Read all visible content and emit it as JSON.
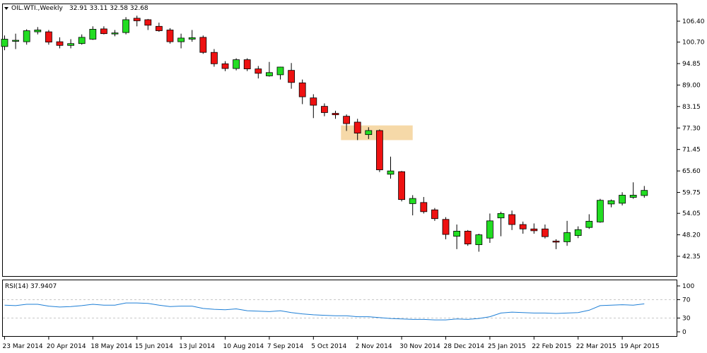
{
  "header": {
    "symbol": "OIL.WTI.,Weekly",
    "ohlc": "32.91 33.11 32.58 32.68"
  },
  "rsi_panel": {
    "label": "RSI(14) 37.9407",
    "levels": [
      0,
      30,
      70,
      100
    ]
  },
  "colors": {
    "bull": "#22dd22",
    "bear": "#ee1111",
    "rsi_line": "#1e7fd6",
    "highlight": "#f6d9a8"
  },
  "highlight_zone": {
    "x_from": 30.5,
    "x_to": 37,
    "y_from": 74.0,
    "y_to": 78.0
  },
  "chart_data": [
    {
      "type": "candlestick",
      "ylim": [
        42.35,
        106.4
      ],
      "y_ticks": [
        "106.40",
        "100.70",
        "94.85",
        "89.00",
        "83.15",
        "77.30",
        "71.45",
        "65.60",
        "59.75",
        "54.05",
        "48.20",
        "42.35"
      ],
      "x_ticks": [
        {
          "i": 0,
          "label": "23 Mar 2014"
        },
        {
          "i": 4,
          "label": "20 Apr 2014"
        },
        {
          "i": 8,
          "label": "18 May 2014"
        },
        {
          "i": 12,
          "label": "15 Jun 2014"
        },
        {
          "i": 16,
          "label": "13 Jul 2014"
        },
        {
          "i": 20,
          "label": "10 Aug 2014"
        },
        {
          "i": 24,
          "label": "7 Sep 2014"
        },
        {
          "i": 28,
          "label": "5 Oct 2014"
        },
        {
          "i": 32,
          "label": "2 Nov 2014"
        },
        {
          "i": 36,
          "label": "30 Nov 2014"
        },
        {
          "i": 40,
          "label": "28 Dec 2014"
        },
        {
          "i": 44,
          "label": "25 Jan 2015"
        },
        {
          "i": 48,
          "label": "22 Feb 2015"
        },
        {
          "i": 52,
          "label": "22 Mar 2015"
        },
        {
          "i": 56,
          "label": "19 Apr 2015"
        }
      ],
      "candles": [
        {
          "o": 99.5,
          "h": 102.5,
          "l": 98.5,
          "c": 101.5
        },
        {
          "o": 101.0,
          "h": 103.0,
          "l": 98.8,
          "c": 101.2
        },
        {
          "o": 100.8,
          "h": 104.2,
          "l": 100.0,
          "c": 103.8
        },
        {
          "o": 103.5,
          "h": 104.8,
          "l": 102.8,
          "c": 104.0
        },
        {
          "o": 103.5,
          "h": 104.0,
          "l": 100.0,
          "c": 100.7
        },
        {
          "o": 100.8,
          "h": 102.0,
          "l": 99.0,
          "c": 99.8
        },
        {
          "o": 99.8,
          "h": 101.5,
          "l": 99.0,
          "c": 100.3
        },
        {
          "o": 100.3,
          "h": 102.8,
          "l": 100.0,
          "c": 102.0
        },
        {
          "o": 101.5,
          "h": 105.0,
          "l": 101.3,
          "c": 104.2
        },
        {
          "o": 104.3,
          "h": 105.0,
          "l": 102.8,
          "c": 103.0
        },
        {
          "o": 103.0,
          "h": 104.0,
          "l": 102.3,
          "c": 103.2
        },
        {
          "o": 103.3,
          "h": 107.5,
          "l": 102.8,
          "c": 106.8
        },
        {
          "o": 107.2,
          "h": 107.9,
          "l": 105.0,
          "c": 106.5
        },
        {
          "o": 106.8,
          "h": 107.0,
          "l": 104.0,
          "c": 105.3
        },
        {
          "o": 105.0,
          "h": 106.0,
          "l": 103.5,
          "c": 103.8
        },
        {
          "o": 104.0,
          "h": 104.5,
          "l": 100.3,
          "c": 100.8
        },
        {
          "o": 100.8,
          "h": 103.0,
          "l": 99.0,
          "c": 101.8
        },
        {
          "o": 101.5,
          "h": 104.0,
          "l": 100.8,
          "c": 101.9
        },
        {
          "o": 102.0,
          "h": 102.5,
          "l": 97.5,
          "c": 97.9
        },
        {
          "o": 97.9,
          "h": 98.8,
          "l": 94.0,
          "c": 94.8
        },
        {
          "o": 94.8,
          "h": 95.5,
          "l": 92.8,
          "c": 93.5
        },
        {
          "o": 93.5,
          "h": 96.3,
          "l": 93.0,
          "c": 95.9
        },
        {
          "o": 95.9,
          "h": 96.3,
          "l": 92.8,
          "c": 93.4
        },
        {
          "o": 93.4,
          "h": 94.2,
          "l": 90.8,
          "c": 92.2
        },
        {
          "o": 91.5,
          "h": 95.3,
          "l": 91.3,
          "c": 92.4
        },
        {
          "o": 91.8,
          "h": 94.0,
          "l": 90.5,
          "c": 93.9
        },
        {
          "o": 93.0,
          "h": 95.0,
          "l": 88.0,
          "c": 89.7
        },
        {
          "o": 89.6,
          "h": 90.5,
          "l": 83.8,
          "c": 85.8
        },
        {
          "o": 85.5,
          "h": 86.5,
          "l": 80.0,
          "c": 83.5
        },
        {
          "o": 83.2,
          "h": 84.0,
          "l": 80.5,
          "c": 81.5
        },
        {
          "o": 81.3,
          "h": 82.0,
          "l": 79.8,
          "c": 80.9
        },
        {
          "o": 80.5,
          "h": 81.0,
          "l": 76.5,
          "c": 78.5
        },
        {
          "o": 78.9,
          "h": 79.8,
          "l": 74.0,
          "c": 75.9
        },
        {
          "o": 75.5,
          "h": 77.5,
          "l": 74.3,
          "c": 76.6
        },
        {
          "o": 76.6,
          "h": 76.9,
          "l": 65.3,
          "c": 65.9
        },
        {
          "o": 64.7,
          "h": 69.5,
          "l": 63.5,
          "c": 65.6
        },
        {
          "o": 65.4,
          "h": 65.6,
          "l": 57.3,
          "c": 57.8
        },
        {
          "o": 56.7,
          "h": 59.0,
          "l": 53.5,
          "c": 58.1
        },
        {
          "o": 57.0,
          "h": 58.5,
          "l": 54.0,
          "c": 54.5
        },
        {
          "o": 55.0,
          "h": 55.5,
          "l": 52.0,
          "c": 52.6
        },
        {
          "o": 52.4,
          "h": 53.0,
          "l": 47.0,
          "c": 48.3
        },
        {
          "o": 47.8,
          "h": 51.0,
          "l": 44.3,
          "c": 49.2
        },
        {
          "o": 49.2,
          "h": 49.5,
          "l": 45.2,
          "c": 45.7
        },
        {
          "o": 45.5,
          "h": 48.5,
          "l": 43.6,
          "c": 48.2
        },
        {
          "o": 47.3,
          "h": 54.0,
          "l": 46.0,
          "c": 52.0
        },
        {
          "o": 52.8,
          "h": 54.5,
          "l": 47.8,
          "c": 54.0
        },
        {
          "o": 53.7,
          "h": 54.8,
          "l": 49.5,
          "c": 51.0
        },
        {
          "o": 51.0,
          "h": 51.8,
          "l": 48.5,
          "c": 49.8
        },
        {
          "o": 49.8,
          "h": 51.3,
          "l": 48.5,
          "c": 49.3
        },
        {
          "o": 49.8,
          "h": 51.0,
          "l": 47.2,
          "c": 47.7
        },
        {
          "o": 46.5,
          "h": 47.0,
          "l": 44.3,
          "c": 46.2
        },
        {
          "o": 46.3,
          "h": 52.0,
          "l": 45.2,
          "c": 48.8
        },
        {
          "o": 48.0,
          "h": 50.5,
          "l": 47.3,
          "c": 49.6
        },
        {
          "o": 50.2,
          "h": 53.8,
          "l": 49.8,
          "c": 51.9
        },
        {
          "o": 51.7,
          "h": 58.0,
          "l": 51.5,
          "c": 57.6
        },
        {
          "o": 56.6,
          "h": 57.8,
          "l": 55.7,
          "c": 57.5
        },
        {
          "o": 56.8,
          "h": 59.8,
          "l": 56.2,
          "c": 59.0
        },
        {
          "o": 58.4,
          "h": 62.5,
          "l": 58.0,
          "c": 59.0
        },
        {
          "o": 58.9,
          "h": 61.5,
          "l": 58.3,
          "c": 60.3
        }
      ]
    },
    {
      "type": "line",
      "name": "RSI(14)",
      "ylim": [
        0,
        100
      ],
      "levels": [
        30,
        70
      ],
      "y_ticks": [
        "100",
        "70",
        "30",
        "0"
      ],
      "values": [
        58,
        57,
        60,
        60,
        56,
        54,
        55,
        57,
        60,
        58,
        58,
        63,
        63,
        62,
        58,
        55,
        56,
        56,
        51,
        49,
        48,
        50,
        46,
        45,
        44,
        46,
        42,
        39,
        37,
        36,
        35,
        35,
        33,
        33,
        31,
        29,
        28,
        27,
        27,
        26,
        26,
        28,
        27,
        29,
        33,
        41,
        43,
        42,
        41,
        41,
        40,
        41,
        42,
        47,
        57,
        58,
        59,
        58,
        61
      ]
    }
  ]
}
